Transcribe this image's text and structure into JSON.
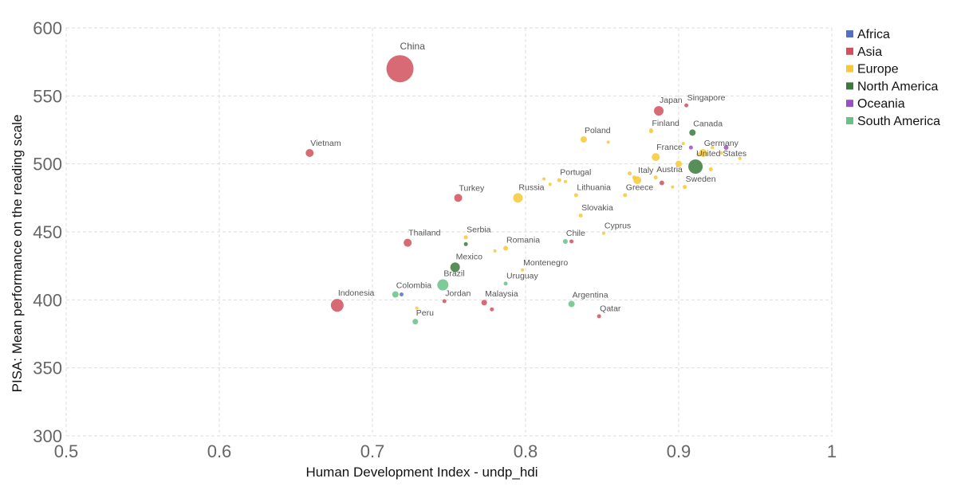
{
  "chart_data": {
    "type": "scatter",
    "xlabel": "Human Development Index - undp_hdi",
    "ylabel": "PISA: Mean performance on the reading scale",
    "xlim": [
      0.5,
      1.0
    ],
    "ylim": [
      300,
      600
    ],
    "x_ticks": [
      "0.5",
      "0.6",
      "0.7",
      "0.8",
      "0.9",
      "1"
    ],
    "y_ticks": [
      "300",
      "350",
      "400",
      "450",
      "500",
      "550",
      "600"
    ],
    "grid": true,
    "legend_position": "right",
    "series": [
      {
        "name": "Africa",
        "color": "#5470c6"
      },
      {
        "name": "Asia",
        "color": "#d1505e"
      },
      {
        "name": "Europe",
        "color": "#f7c934"
      },
      {
        "name": "North America",
        "color": "#3b7a3b"
      },
      {
        "name": "Oceania",
        "color": "#9b4fc4"
      },
      {
        "name": "South America",
        "color": "#66c287"
      }
    ],
    "points": [
      {
        "label": "China",
        "x": 0.718,
        "y": 570,
        "size": 17,
        "group": "Asia"
      },
      {
        "label": "Vietnam",
        "x": 0.659,
        "y": 508,
        "size": 5,
        "group": "Asia"
      },
      {
        "label": "Japan",
        "x": 0.887,
        "y": 539,
        "size": 6,
        "group": "Asia"
      },
      {
        "label": "Singapore",
        "x": 0.905,
        "y": 543,
        "size": 2.5,
        "group": "Asia"
      },
      {
        "label": "Finland",
        "x": 0.882,
        "y": 524,
        "size": 2.5,
        "group": "Europe"
      },
      {
        "label": "Canada",
        "x": 0.909,
        "y": 523,
        "size": 4,
        "group": "North America"
      },
      {
        "label": "Poland",
        "x": 0.838,
        "y": 518,
        "size": 4,
        "group": "Europe"
      },
      {
        "label": "France",
        "x": 0.885,
        "y": 505,
        "size": 5,
        "group": "Europe"
      },
      {
        "label": "Germany",
        "x": 0.916,
        "y": 508,
        "size": 5,
        "group": "Europe"
      },
      {
        "label": "United States",
        "x": 0.911,
        "y": 498,
        "size": 9,
        "group": "North America"
      },
      {
        "label": "Italy",
        "x": 0.873,
        "y": 488,
        "size": 5,
        "group": "Europe"
      },
      {
        "label": "Austria",
        "x": 0.885,
        "y": 490,
        "size": 2.5,
        "group": "Europe"
      },
      {
        "label": "Sweden",
        "x": 0.904,
        "y": 483,
        "size": 2.5,
        "group": "Europe"
      },
      {
        "label": "Portugal",
        "x": 0.822,
        "y": 488,
        "size": 2.5,
        "group": "Europe"
      },
      {
        "label": "Lithuania",
        "x": 0.833,
        "y": 477,
        "size": 2.5,
        "group": "Europe"
      },
      {
        "label": "Greece",
        "x": 0.865,
        "y": 477,
        "size": 2.5,
        "group": "Europe"
      },
      {
        "label": "Russia",
        "x": 0.795,
        "y": 475,
        "size": 6,
        "group": "Europe"
      },
      {
        "label": "Turkey",
        "x": 0.756,
        "y": 475,
        "size": 5,
        "group": "Asia"
      },
      {
        "label": "Slovakia",
        "x": 0.836,
        "y": 462,
        "size": 2.5,
        "group": "Europe"
      },
      {
        "label": "Cyprus",
        "x": 0.851,
        "y": 449,
        "size": 2,
        "group": "Europe"
      },
      {
        "label": "Serbia",
        "x": 0.761,
        "y": 446,
        "size": 2.5,
        "group": "Europe"
      },
      {
        "label": "Thailand",
        "x": 0.723,
        "y": 442,
        "size": 5,
        "group": "Asia"
      },
      {
        "label": "Chile",
        "x": 0.826,
        "y": 443,
        "size": 3,
        "group": "South America"
      },
      {
        "label": "Romania",
        "x": 0.787,
        "y": 438,
        "size": 3,
        "group": "Europe"
      },
      {
        "label": "Mexico",
        "x": 0.754,
        "y": 424,
        "size": 6,
        "group": "North America"
      },
      {
        "label": "Montenegro",
        "x": 0.798,
        "y": 422,
        "size": 2,
        "group": "Europe"
      },
      {
        "label": "Uruguay",
        "x": 0.787,
        "y": 412,
        "size": 2.5,
        "group": "South America"
      },
      {
        "label": "Brazil",
        "x": 0.746,
        "y": 411,
        "size": 7,
        "group": "South America"
      },
      {
        "label": "Colombia",
        "x": 0.715,
        "y": 404,
        "size": 4,
        "group": "South America"
      },
      {
        "label": "Jordan",
        "x": 0.747,
        "y": 399,
        "size": 2.5,
        "group": "Asia"
      },
      {
        "label": "Indonesia",
        "x": 0.677,
        "y": 396,
        "size": 8,
        "group": "Asia"
      },
      {
        "label": "Malaysia",
        "x": 0.773,
        "y": 398,
        "size": 3.5,
        "group": "Asia"
      },
      {
        "label": "Argentina",
        "x": 0.83,
        "y": 397,
        "size": 4,
        "group": "South America"
      },
      {
        "label": "Qatar",
        "x": 0.848,
        "y": 388,
        "size": 2.5,
        "group": "Asia"
      },
      {
        "label": "Peru",
        "x": 0.728,
        "y": 384,
        "size": 3.5,
        "group": "South America"
      },
      {
        "label": "",
        "x": 0.882,
        "y": 525,
        "size": 2,
        "group": "Europe"
      },
      {
        "label": "",
        "x": 0.854,
        "y": 516,
        "size": 2,
        "group": "Europe"
      },
      {
        "label": "",
        "x": 0.922,
        "y": 512,
        "size": 2,
        "group": "Europe"
      },
      {
        "label": "",
        "x": 0.908,
        "y": 512,
        "size": 2.5,
        "group": "Oceania"
      },
      {
        "label": "",
        "x": 0.931,
        "y": 512,
        "size": 3,
        "group": "Oceania"
      },
      {
        "label": "",
        "x": 0.903,
        "y": 515,
        "size": 2,
        "group": "Europe"
      },
      {
        "label": "",
        "x": 0.928,
        "y": 508,
        "size": 2,
        "group": "Europe"
      },
      {
        "label": "",
        "x": 0.913,
        "y": 507,
        "size": 2.5,
        "group": "Europe"
      },
      {
        "label": "",
        "x": 0.94,
        "y": 504,
        "size": 2,
        "group": "Europe"
      },
      {
        "label": "",
        "x": 0.9,
        "y": 500,
        "size": 4,
        "group": "Europe"
      },
      {
        "label": "",
        "x": 0.921,
        "y": 496,
        "size": 2.5,
        "group": "Europe"
      },
      {
        "label": "",
        "x": 0.868,
        "y": 493,
        "size": 2.5,
        "group": "Europe"
      },
      {
        "label": "",
        "x": 0.871,
        "y": 490,
        "size": 2.5,
        "group": "Europe"
      },
      {
        "label": "",
        "x": 0.889,
        "y": 486,
        "size": 3,
        "group": "Asia"
      },
      {
        "label": "",
        "x": 0.896,
        "y": 483,
        "size": 2,
        "group": "Europe"
      },
      {
        "label": "",
        "x": 0.826,
        "y": 487,
        "size": 2,
        "group": "Europe"
      },
      {
        "label": "",
        "x": 0.812,
        "y": 489,
        "size": 2,
        "group": "Europe"
      },
      {
        "label": "",
        "x": 0.816,
        "y": 485,
        "size": 2,
        "group": "Europe"
      },
      {
        "label": "",
        "x": 0.83,
        "y": 443,
        "size": 2.5,
        "group": "Asia"
      },
      {
        "label": "",
        "x": 0.761,
        "y": 441,
        "size": 2.5,
        "group": "North America"
      },
      {
        "label": "",
        "x": 0.78,
        "y": 436,
        "size": 2,
        "group": "Europe"
      },
      {
        "label": "",
        "x": 0.719,
        "y": 404,
        "size": 2.5,
        "group": "Africa"
      },
      {
        "label": "",
        "x": 0.729,
        "y": 394,
        "size": 2,
        "group": "Europe"
      },
      {
        "label": "",
        "x": 0.778,
        "y": 393,
        "size": 2.5,
        "group": "Asia"
      }
    ]
  }
}
